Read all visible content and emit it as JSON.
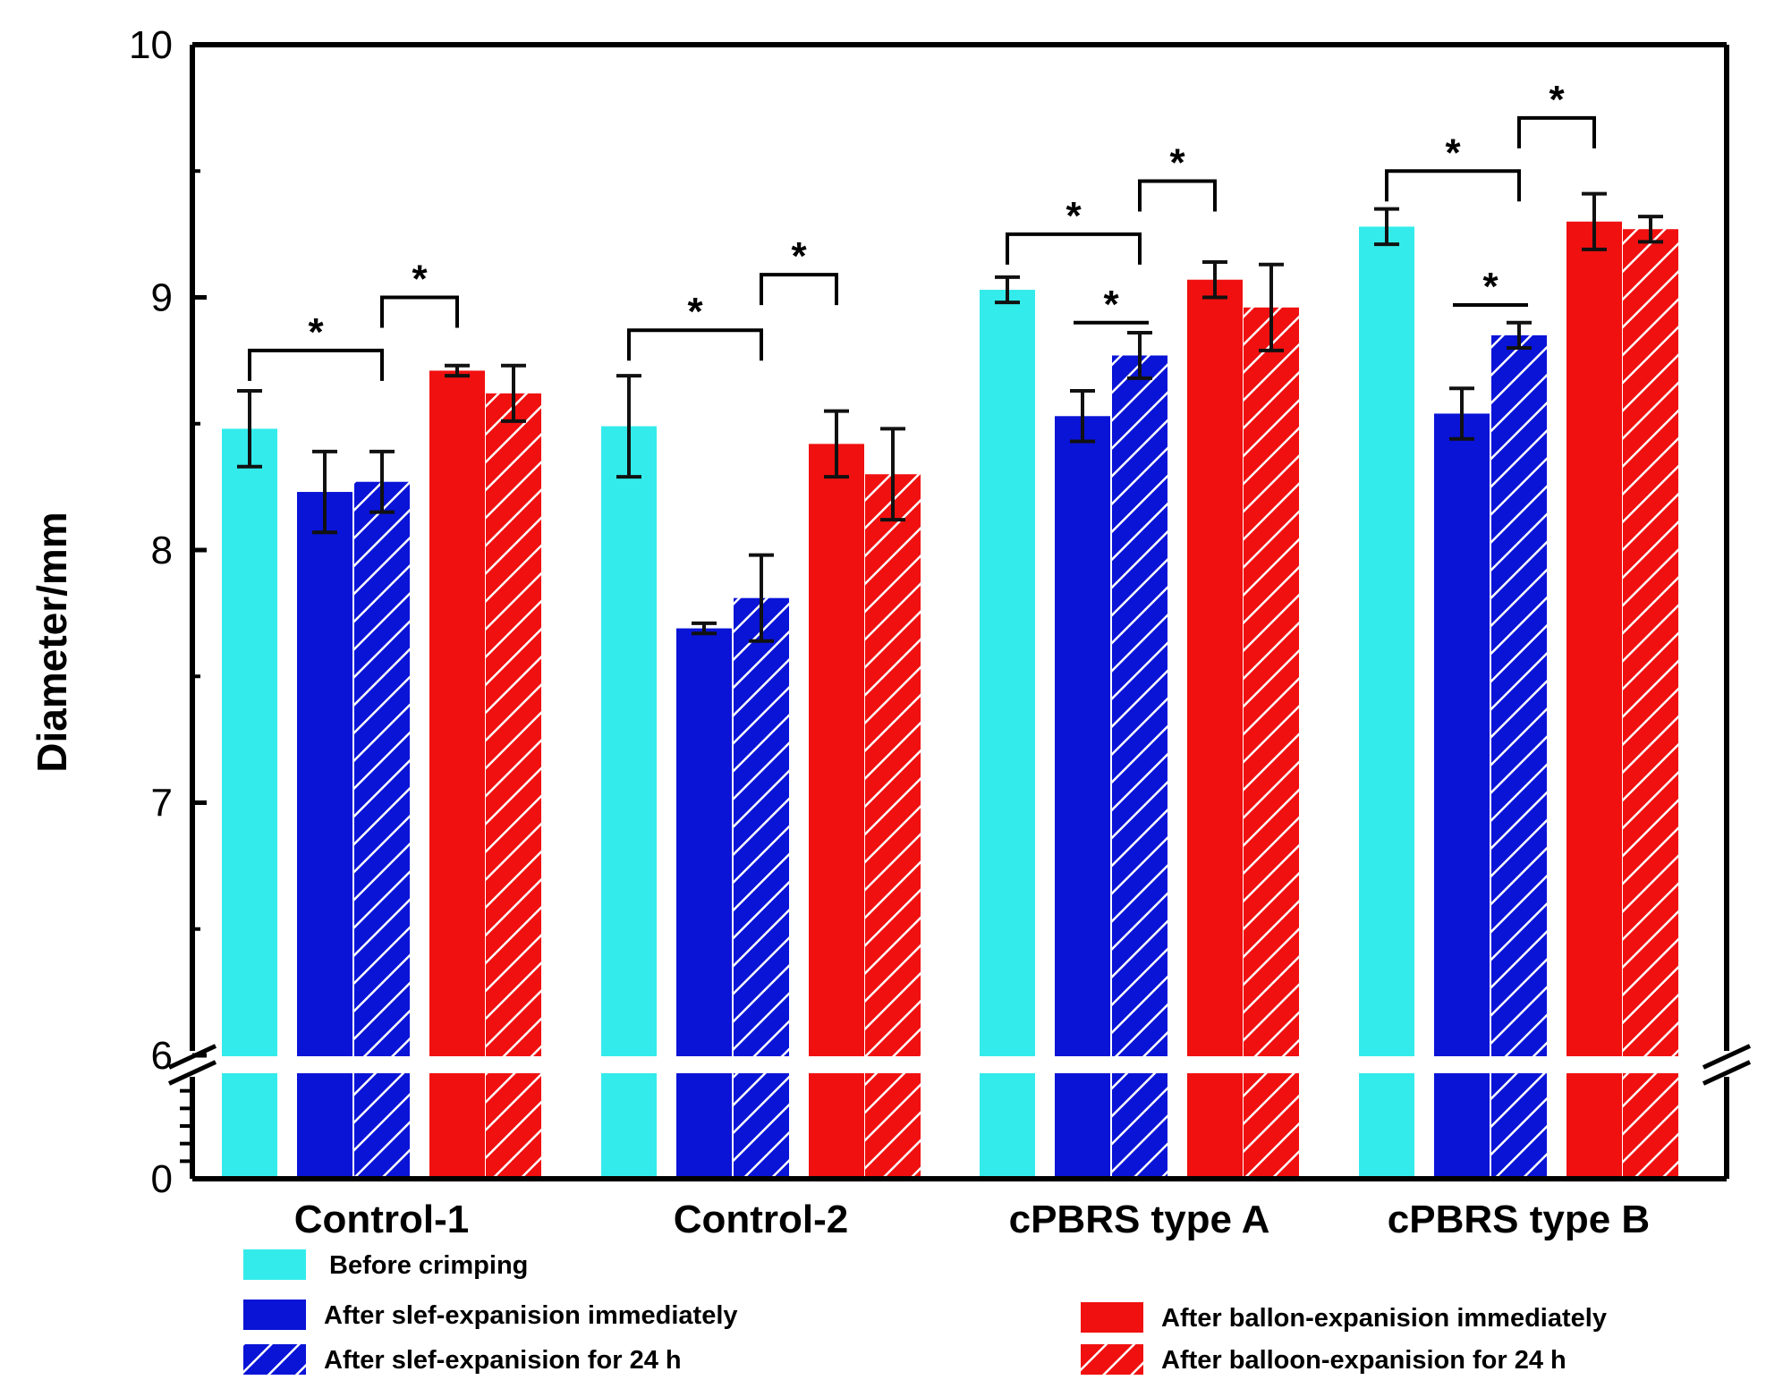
{
  "chart_data": {
    "type": "bar",
    "title": "",
    "xlabel": "",
    "ylabel": "Diameter/mm",
    "ylim_upper": [
      6,
      10
    ],
    "ylim_lower": [
      0,
      6
    ],
    "axis_break_at": 6,
    "y_ticks_upper": [
      "6",
      "7",
      "8",
      "9",
      "10"
    ],
    "y_ticks_lower": [
      "0"
    ],
    "categories": [
      "Control-1",
      "Control-2",
      "cPBRS type A",
      "cPBRS type B"
    ],
    "series": [
      {
        "name": "Before crimping",
        "color": "#33ebeb",
        "hatched": false,
        "values": [
          8.48,
          8.49,
          9.03,
          9.28
        ],
        "errors": [
          0.15,
          0.2,
          0.05,
          0.07
        ]
      },
      {
        "name": "After slef-expanision immediately",
        "color": "#0a14d6",
        "hatched": false,
        "values": [
          8.23,
          7.69,
          8.53,
          8.54
        ],
        "errors": [
          0.16,
          0.02,
          0.1,
          0.1
        ]
      },
      {
        "name": "After slef-expanision for 24 h",
        "color": "#0a14d6",
        "hatched": true,
        "values": [
          8.27,
          7.81,
          8.77,
          8.85
        ],
        "errors": [
          0.12,
          0.17,
          0.09,
          0.05
        ]
      },
      {
        "name": "After ballon-expanision immediately",
        "color": "#f01010",
        "hatched": false,
        "values": [
          8.71,
          8.42,
          9.07,
          9.3
        ],
        "errors": [
          0.02,
          0.13,
          0.07,
          0.11
        ]
      },
      {
        "name": "After balloon-expanision for 24 h",
        "color": "#f01010",
        "hatched": true,
        "values": [
          8.62,
          8.3,
          8.96,
          9.27
        ],
        "errors": [
          0.11,
          0.18,
          0.17,
          0.05
        ]
      }
    ],
    "significance": [
      {
        "group": 0,
        "from": 0,
        "to": 2,
        "level": 8.79,
        "label": "*"
      },
      {
        "group": 0,
        "from": 2,
        "to": 3,
        "level": 9.0,
        "label": "*"
      },
      {
        "group": 1,
        "from": 0,
        "to": 2,
        "level": 8.87,
        "label": "*"
      },
      {
        "group": 1,
        "from": 2,
        "to": 3,
        "level": 9.09,
        "label": "*"
      },
      {
        "group": 2,
        "from": 0,
        "to": 2,
        "level": 9.25,
        "label": "*"
      },
      {
        "group": 2,
        "from": 1,
        "to": 2,
        "level": 8.9,
        "label": "*"
      },
      {
        "group": 2,
        "from": 2,
        "to": 3,
        "level": 9.46,
        "label": "*"
      },
      {
        "group": 3,
        "from": 0,
        "to": 2,
        "level": 9.5,
        "label": "*"
      },
      {
        "group": 3,
        "from": 1,
        "to": 2,
        "level": 8.97,
        "label": "*"
      },
      {
        "group": 3,
        "from": 2,
        "to": 3,
        "level": 9.71,
        "label": "*"
      }
    ],
    "legend_position": "bottom"
  }
}
